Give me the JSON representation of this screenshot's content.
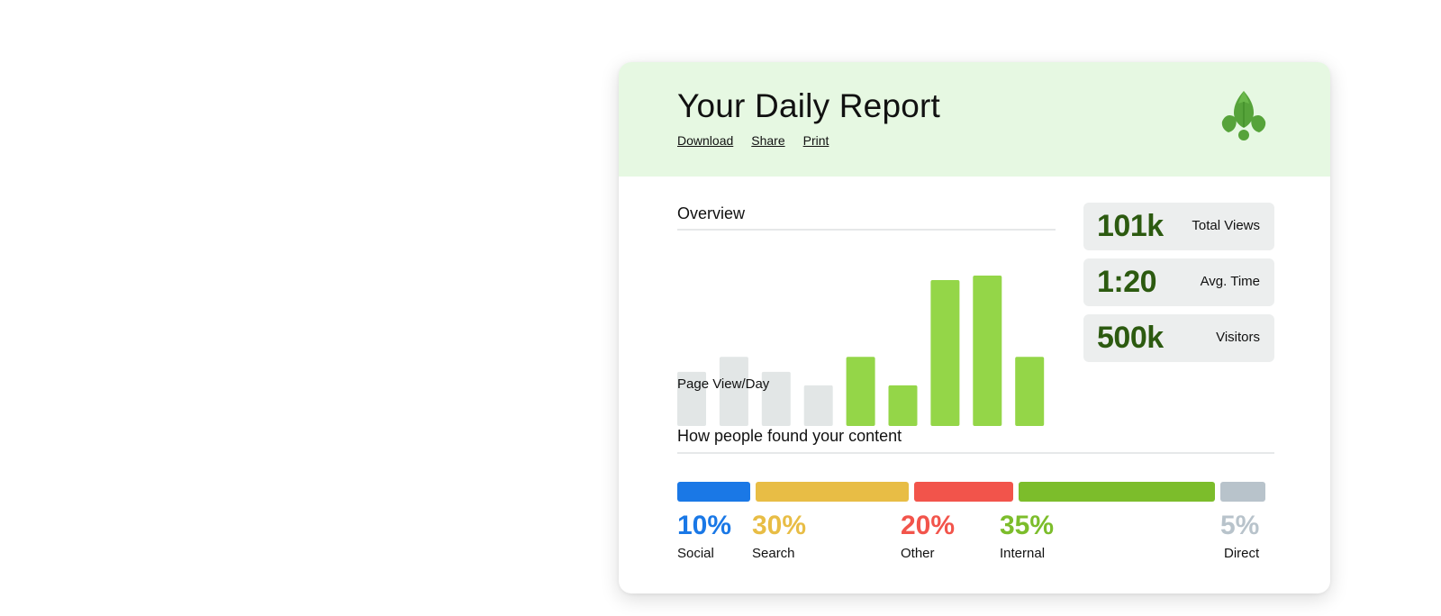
{
  "header": {
    "title": "Your Daily Report",
    "links": [
      "Download",
      "Share",
      "Print"
    ],
    "background": "#e6f8e2",
    "logo": "leaf-icon"
  },
  "overview": {
    "title": "Overview",
    "caption": "Page View/Day"
  },
  "chart_data": {
    "type": "bar",
    "title": "Overview",
    "xlabel": "Page View/Day",
    "ylabel": "",
    "categories": [
      "",
      "",
      "",
      "",
      "",
      "",
      "",
      "",
      ""
    ],
    "values": [
      36,
      46,
      36,
      27,
      46,
      27,
      97,
      100,
      46
    ],
    "highlighted": [
      false,
      false,
      false,
      false,
      true,
      true,
      true,
      true,
      true
    ],
    "colors": {
      "default": "#e2e6e6",
      "highlight": "#94d648"
    },
    "ylim": [
      0,
      100
    ],
    "grid": false
  },
  "stats": [
    {
      "value": "101k",
      "label": "Total Views"
    },
    {
      "value": "1:20",
      "label": "Avg. Time"
    },
    {
      "value": "500k",
      "label": "Visitors"
    }
  ],
  "sources": {
    "title": "How people found your content",
    "items": [
      {
        "percent": "10%",
        "label": "Social",
        "value": 10,
        "color": "#1a78e6"
      },
      {
        "percent": "30%",
        "label": "Search",
        "value": 30,
        "color": "#e8bd45"
      },
      {
        "percent": "20%",
        "label": "Other",
        "value": 20,
        "color": "#f2544b"
      },
      {
        "percent": "35%",
        "label": "Internal",
        "value": 35,
        "color": "#7cbd2b"
      },
      {
        "percent": "5%",
        "label": "Direct",
        "value": 5,
        "color": "#b8c3cb"
      }
    ]
  }
}
